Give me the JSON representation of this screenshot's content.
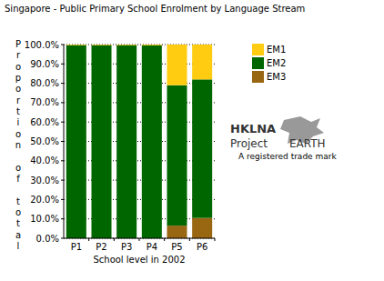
{
  "chart_data": {
    "type": "bar",
    "title": "Singapore - Public Primary School Enrolment by Language Stream",
    "y_label": "Proportion of total",
    "x_label": "School level in 2002",
    "categories": [
      "P1",
      "P2",
      "P3",
      "P4",
      "P5",
      "P6"
    ],
    "series": [
      {
        "name": "EM3",
        "color": "#996611",
        "values": [
          0,
          0,
          0,
          0,
          6.5,
          10.5
        ]
      },
      {
        "name": "EM2",
        "color": "#006600",
        "values": [
          99.7,
          99.7,
          99.7,
          99.6,
          72.5,
          71.5
        ]
      },
      {
        "name": "EM1",
        "color": "#ffcc11",
        "values": [
          0.3,
          0.3,
          0.3,
          0.4,
          21,
          18
        ]
      }
    ],
    "stacked": true,
    "ylim": [
      0,
      100
    ],
    "yticks": [
      {
        "value": 0,
        "label": "0.0%"
      },
      {
        "value": 10,
        "label": "10.0%"
      },
      {
        "value": 20,
        "label": "20.0%"
      },
      {
        "value": 30,
        "label": "30.0%"
      },
      {
        "value": 40,
        "label": "40.0%"
      },
      {
        "value": 50,
        "label": "50.0%"
      },
      {
        "value": 60,
        "label": "60.0%"
      },
      {
        "value": 70,
        "label": "70.0%"
      },
      {
        "value": 80,
        "label": "80.0%"
      },
      {
        "value": 90,
        "label": "90.0%"
      },
      {
        "value": 100,
        "label": "100.0%"
      }
    ],
    "grid": true,
    "legend": "right",
    "annotations": [
      "HKLNA",
      "Project",
      "EARTH",
      "A registered trade mark"
    ]
  }
}
